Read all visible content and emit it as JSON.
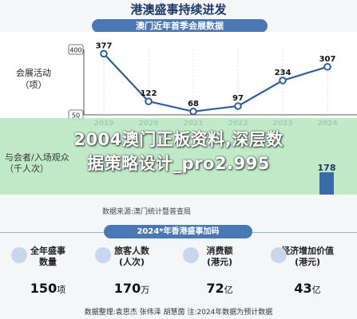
{
  "header": {
    "title": "港澳盛事持续进发",
    "subtitle": "澳门近年首季会展数据"
  },
  "chart_data": {
    "type": "line",
    "x": [
      "2019",
      "2020",
      "2021",
      "2022",
      "2023",
      "2024"
    ],
    "series": [
      {
        "name": "会展活动（项）",
        "values": [
          377,
          122,
          68,
          97,
          234,
          307
        ]
      }
    ],
    "ylim": [
      50,
      400
    ],
    "y_ticks": [
      "400",
      "50"
    ],
    "row2_label": [
      "与会者/入场观众",
      "（千人次）"
    ],
    "row2_values": {
      "2024": 178
    }
  },
  "overlay": {
    "line1": "2004澳门正板资料,深层数",
    "line2": "据策略设计_pro2.995"
  },
  "source": "数据来源:澳门统计暨普查局",
  "section2": {
    "title": "2024*年香港盛事加码",
    "stats": [
      {
        "label1": "全年盛事",
        "label2": "数量",
        "value": "150",
        "unit": "项"
      },
      {
        "label1": "旅客人数",
        "label2": "(人次)",
        "value": "170",
        "unit": "万"
      },
      {
        "label1": "消费额",
        "label2": "(港元)",
        "value": "72",
        "unit": "亿"
      },
      {
        "label1": "经济增加价值",
        "label2": "(港元)",
        "value": "43",
        "unit": "亿"
      }
    ]
  },
  "credits": "数据整理:袁思杰   张伟泽   胡慧茵   注:2024年数据为预计数据",
  "colors": {
    "line": "#2f5e96",
    "accent": "#4a78b5",
    "overlay": "#b7e8bf"
  }
}
